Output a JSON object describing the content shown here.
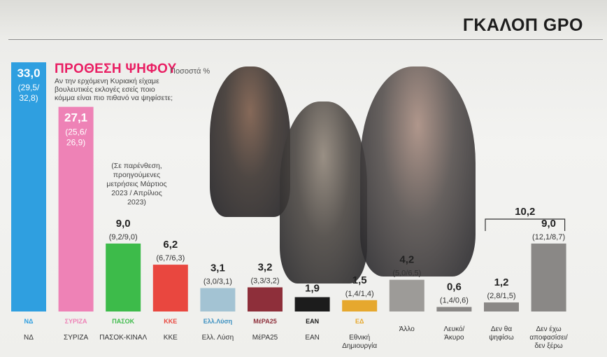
{
  "header": {
    "brand": "ΓΚΑΛΟΠ GPO"
  },
  "title": "ΠΡΟΘΕΣΗ ΨΗΦΟΥ",
  "unit_label": "Ποσοστά %",
  "question": "Αν την ερχόμενη Κυριακή είχαμε βουλευτικές εκλογές εσείς ποιο κόμμα είναι πιο πιθανό να ψηφίσετε;",
  "paren_note": "(Σε παρένθεση, προηγούμενες μετρήσεις Μάρτιος 2023 / Απρίλιος 2023)",
  "group_total": "10,2",
  "chart_data": {
    "type": "bar",
    "title": "ΠΡΟΘΕΣΗ ΨΗΦΟΥ",
    "ylabel": "",
    "unit": "Ποσοστά %",
    "ylim": [
      0,
      33
    ],
    "grid": false,
    "legend": "none",
    "categories": [
      "ΝΔ",
      "ΣΥΡΙΖΑ",
      "ΠΑΣΟΚ-ΚΙΝΑΛ",
      "ΚΚΕ",
      "Ελλ. Λύση",
      "ΜέΡΑ25",
      "ΕΑΝ",
      "Εθνική Δημιουργία",
      "Άλλο",
      "Λευκό/ Άκυρο",
      "Δεν θα ψηφίσω",
      "Δεν έχω αποφασίσει/ δεν ξέρω"
    ],
    "values": [
      33.0,
      27.1,
      9.0,
      6.2,
      3.1,
      3.2,
      1.9,
      1.5,
      4.2,
      0.6,
      1.2,
      9.0
    ],
    "value_labels": [
      "33,0",
      "27,1",
      "9,0",
      "6,2",
      "3,1",
      "3,2",
      "1,9",
      "1,5",
      "4,2",
      "0,6",
      "1,2",
      "9,0"
    ],
    "previous_labels": [
      "(29,5/ 32,8)",
      "(25,6/ 26,9)",
      "(9,2/9,0)",
      "(6,7/6,3)",
      "(3,0/3,1)",
      "(3,3/3,2)",
      "",
      "(1,4/1,4)",
      "(5,0/6,5)",
      "(1,4/0,6)",
      "(2,8/1,5)",
      "(12,1/8,7)"
    ],
    "colors": [
      "#2f9fe0",
      "#ee82b6",
      "#3dbb4a",
      "#e9473f",
      "#a3c3d3",
      "#8e2f3a",
      "#1c1c1c",
      "#e6a82e",
      "#9d9b98",
      "#8a8886",
      "#8a8886",
      "#8a8886"
    ],
    "logos": [
      "ΝΔ",
      "ΣΥΡΙΖΑ",
      "ΠΑΣΟΚ",
      "ΚΚΕ",
      "Ελλ.Λύση",
      "ΜέΡΑ25",
      "ΕΑΝ",
      "ΕΔ",
      "",
      "",
      "",
      ""
    ]
  }
}
